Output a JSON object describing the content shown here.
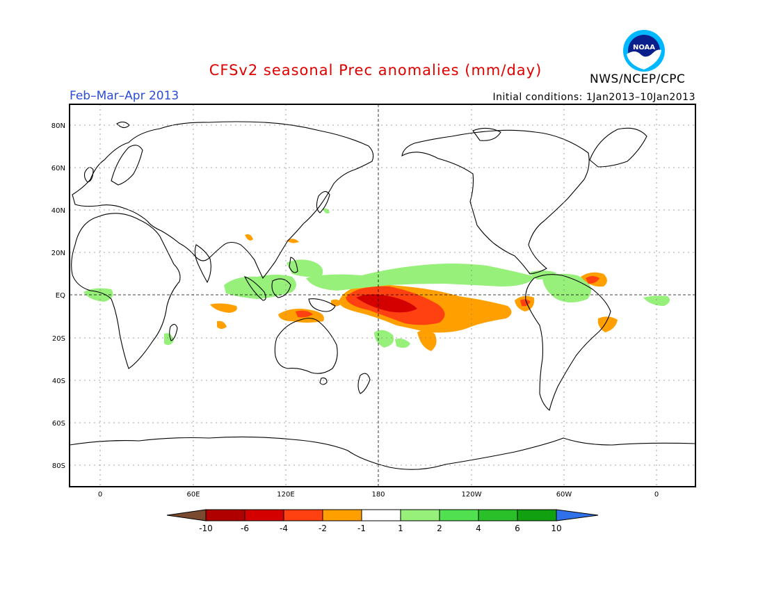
{
  "header": {
    "title": "CFSv2 seasonal Prec anomalies (mm/day)",
    "period": "Feb–Mar–Apr 2013",
    "initial_conditions": "Initial conditions: 1Jan2013–10Jan2013",
    "agency": "NWS/NCEP/CPC",
    "logo_text": "NOAA"
  },
  "map": {
    "lat_labels": [
      "80N",
      "60N",
      "40N",
      "20N",
      "EQ",
      "20S",
      "40S",
      "60S",
      "80S"
    ],
    "lon_labels": [
      "0",
      "60E",
      "120E",
      "180",
      "120W",
      "60W",
      "0"
    ]
  },
  "legend": {
    "labels": [
      "-10",
      "-6",
      "-4",
      "-2",
      "-1",
      "1",
      "2",
      "4",
      "6",
      "10"
    ],
    "colors": {
      "lt_neg10": "#7a4a30",
      "neg10_neg6": "#b00000",
      "neg6_neg4": "#d40000",
      "neg4_neg2": "#ff4010",
      "neg2_neg1": "#ffa000",
      "neg1_1": "#ffffff",
      "one_2": "#96f07a",
      "two_4": "#50e050",
      "four_6": "#2ac02a",
      "six_10": "#10a010",
      "gt_10": "#3070e8"
    }
  },
  "anomalies": {
    "wet": "#96f07a",
    "orange": "#ffa000",
    "red": "#ff4010",
    "darkred": "#d40000"
  }
}
